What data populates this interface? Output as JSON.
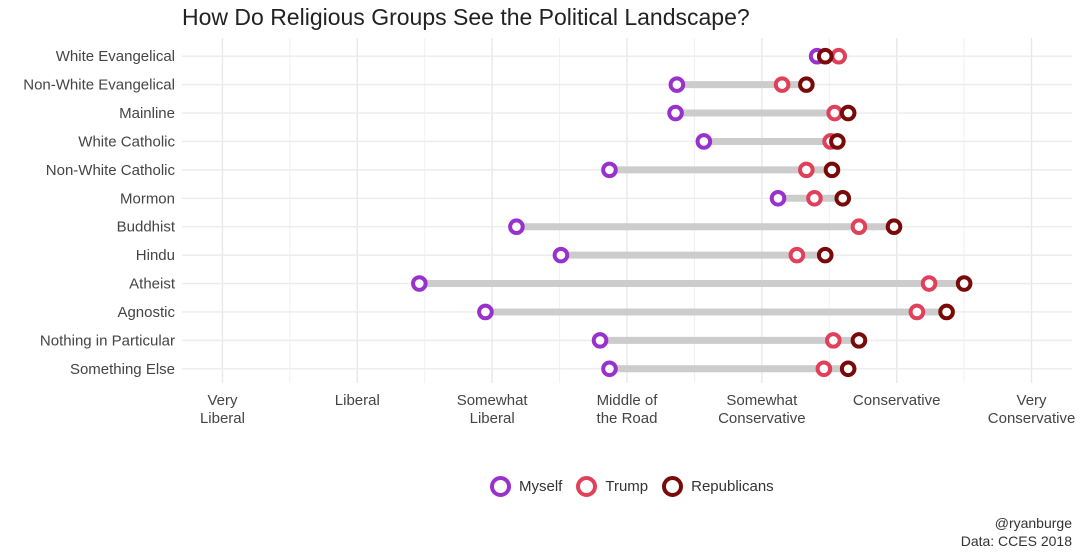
{
  "chart_data": {
    "type": "dumbbell",
    "title": "How Do Religious Groups See the Political Landscape?",
    "x_ticks": [
      {
        "value": 1,
        "label": [
          "Very",
          "Liberal"
        ]
      },
      {
        "value": 2,
        "label": [
          "Liberal"
        ]
      },
      {
        "value": 3,
        "label": [
          "Somewhat",
          "Liberal"
        ]
      },
      {
        "value": 4,
        "label": [
          "Middle of",
          "the Road"
        ]
      },
      {
        "value": 5,
        "label": [
          "Somewhat",
          "Conservative"
        ]
      },
      {
        "value": 6,
        "label": [
          "Conservative"
        ]
      },
      {
        "value": 7,
        "label": [
          "Very",
          "Conservative"
        ]
      }
    ],
    "xlim": [
      0.7,
      7.3
    ],
    "grid": true,
    "legend_position": "bottom",
    "series": [
      {
        "name": "Myself",
        "color": "#9932CC"
      },
      {
        "name": "Trump",
        "color": "#E0405A"
      },
      {
        "name": "Republicans",
        "color": "#7A0A0A"
      }
    ],
    "groups": [
      {
        "name": "White Evangelical",
        "values": [
          5.41,
          5.57,
          5.47
        ]
      },
      {
        "name": "Non-White Evangelical",
        "values": [
          4.37,
          5.15,
          5.33
        ]
      },
      {
        "name": "Mainline",
        "values": [
          4.36,
          5.54,
          5.64
        ]
      },
      {
        "name": "White Catholic",
        "values": [
          4.57,
          5.51,
          5.56
        ]
      },
      {
        "name": "Non-White Catholic",
        "values": [
          3.87,
          5.33,
          5.52
        ]
      },
      {
        "name": "Mormon",
        "values": [
          5.12,
          5.39,
          5.6
        ]
      },
      {
        "name": "Buddhist",
        "values": [
          3.18,
          5.72,
          5.98
        ]
      },
      {
        "name": "Hindu",
        "values": [
          3.51,
          5.26,
          5.47
        ]
      },
      {
        "name": "Atheist",
        "values": [
          2.46,
          6.24,
          6.5
        ]
      },
      {
        "name": "Agnostic",
        "values": [
          2.95,
          6.15,
          6.37
        ]
      },
      {
        "name": "Nothing in Particular",
        "values": [
          3.8,
          5.53,
          5.72
        ]
      },
      {
        "name": "Something Else",
        "values": [
          3.87,
          5.46,
          5.64
        ]
      }
    ]
  },
  "caption": {
    "author": "@ryanburge",
    "source": "Data: CCES 2018"
  }
}
